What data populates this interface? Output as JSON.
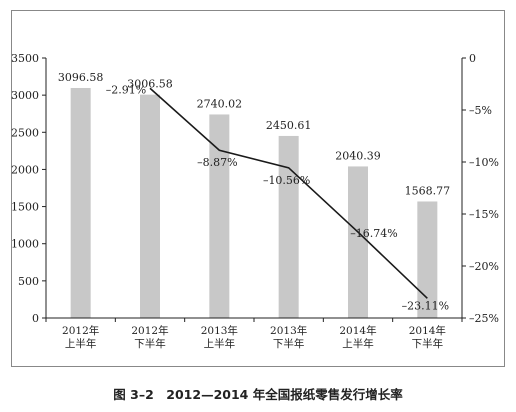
{
  "caption": "图 3–2　2012—2014 年全国报纸零售发行增长率",
  "chart_data": {
    "type": "bar",
    "title": "",
    "categories": [
      [
        "2012年",
        "上半年"
      ],
      [
        "2012年",
        "下半年"
      ],
      [
        "2013年",
        "上半年"
      ],
      [
        "2013年",
        "下半年"
      ],
      [
        "2014年",
        "上半年"
      ],
      [
        "2014年",
        "下半年"
      ]
    ],
    "bars": {
      "values": [
        3096.58,
        3006.58,
        2740.02,
        2450.61,
        2040.39,
        1568.77
      ],
      "labels": [
        "3096.58",
        "3006.58",
        "2740.02",
        "2450.61",
        "2040.39",
        "1568.77"
      ],
      "color": "#c8c8c8"
    },
    "line": {
      "values": [
        null,
        -2.91,
        -8.87,
        -10.56,
        -16.74,
        -23.11
      ],
      "labels": [
        "",
        "–2.91%",
        "–8.87%",
        "–10.56%",
        "–16.74%",
        "–23.11%"
      ],
      "color": "#1a1a1a"
    },
    "ylim_left": [
      0,
      3500
    ],
    "yticks_left": [
      0,
      500,
      1000,
      1500,
      2000,
      2500,
      3000,
      3500
    ],
    "ytick_labels_left": [
      "0",
      "500",
      "1000",
      "1500",
      "2000",
      "2500",
      "3000",
      "3500"
    ],
    "ylim_right": [
      -25,
      0
    ],
    "yticks_right": [
      0,
      -5,
      -10,
      -15,
      -20,
      -25
    ],
    "ytick_labels_right": [
      "0",
      "–5%",
      "–10%",
      "–15%",
      "–20%",
      "–25%"
    ],
    "grid": false,
    "legend": "none"
  }
}
